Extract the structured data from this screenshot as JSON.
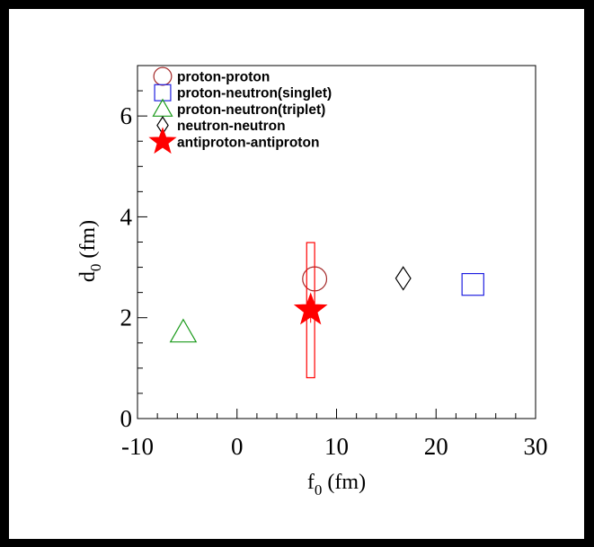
{
  "chart_data": {
    "type": "scatter",
    "xlabel": {
      "main": "f",
      "sub": "0",
      "unit": " (fm)"
    },
    "ylabel": {
      "main": "d",
      "sub": "0",
      "unit": " (fm)"
    },
    "xlim": [
      -10,
      30
    ],
    "ylim": [
      0,
      7
    ],
    "xticks": [
      -10,
      0,
      10,
      20,
      30
    ],
    "yticks": [
      0,
      2,
      4,
      6
    ],
    "grid": false,
    "legend_position": "top-left",
    "series": [
      {
        "name": "proton-proton",
        "marker": "circle",
        "color": "#a52a2a",
        "filled": false,
        "points": [
          {
            "x": 7.8,
            "y": 2.77
          }
        ]
      },
      {
        "name": "proton-neutron(singlet)",
        "marker": "square",
        "color": "#1f1fe0",
        "filled": false,
        "points": [
          {
            "x": 23.7,
            "y": 2.66
          }
        ]
      },
      {
        "name": "proton-neutron(triplet)",
        "marker": "triangle",
        "color": "#1a9a1a",
        "filled": false,
        "points": [
          {
            "x": -5.4,
            "y": 1.71
          }
        ]
      },
      {
        "name": "neutron-neutron",
        "marker": "diamond",
        "color": "#000000",
        "filled": false,
        "points": [
          {
            "x": 16.7,
            "y": 2.78
          }
        ]
      },
      {
        "name": "antiproton-antiproton",
        "marker": "star",
        "color": "#ff0000",
        "filled": true,
        "points": [
          {
            "x": 7.4,
            "y": 2.15,
            "y_stat_err": [
              1.9,
              2.4
            ],
            "sys_box": {
              "x": [
                7.0,
                7.8
              ],
              "y": [
                0.81,
                3.49
              ]
            }
          }
        ]
      }
    ]
  }
}
